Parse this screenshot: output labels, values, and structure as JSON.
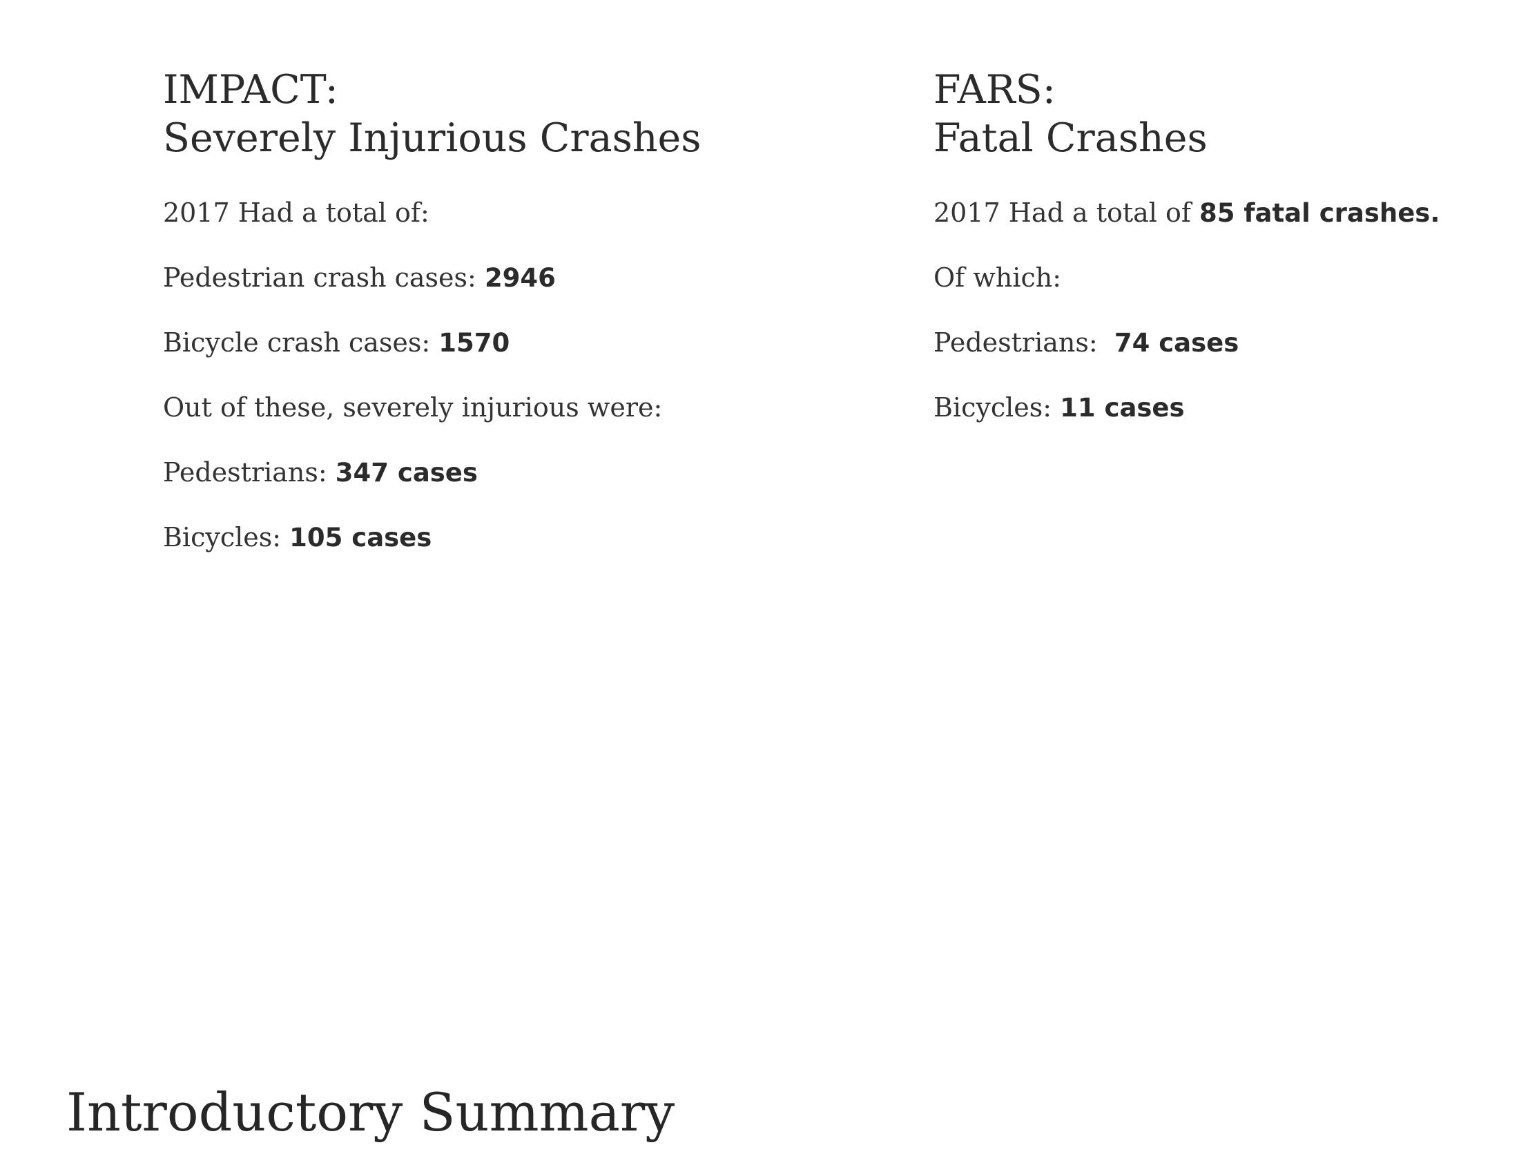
{
  "impact": {
    "heading_line1": "IMPACT:",
    "heading_line2": "Severely Injurious Crashes",
    "rows": [
      {
        "label": "2017 Had a total of:",
        "value": ""
      },
      {
        "label": "Pedestrian crash cases: ",
        "value": "2946"
      },
      {
        "label": "Bicycle crash cases: ",
        "value": "1570"
      },
      {
        "label": "Out of these, severely injurious were:",
        "value": ""
      },
      {
        "label": "Pedestrians: ",
        "value": "347 cases"
      },
      {
        "label": "Bicycles: ",
        "value": "105 cases"
      }
    ]
  },
  "fars": {
    "heading_line1": "FARS:",
    "heading_line2": "Fatal Crashes",
    "rows": [
      {
        "label": "2017 Had a total of ",
        "value": "85 fatal crashes."
      },
      {
        "label": "Of which:",
        "value": ""
      },
      {
        "label": "Pedestrians:  ",
        "value": "74 cases"
      },
      {
        "label": "Bicycles: ",
        "value": "11 cases"
      }
    ]
  },
  "footer": {
    "title": "Introductory Summary"
  }
}
